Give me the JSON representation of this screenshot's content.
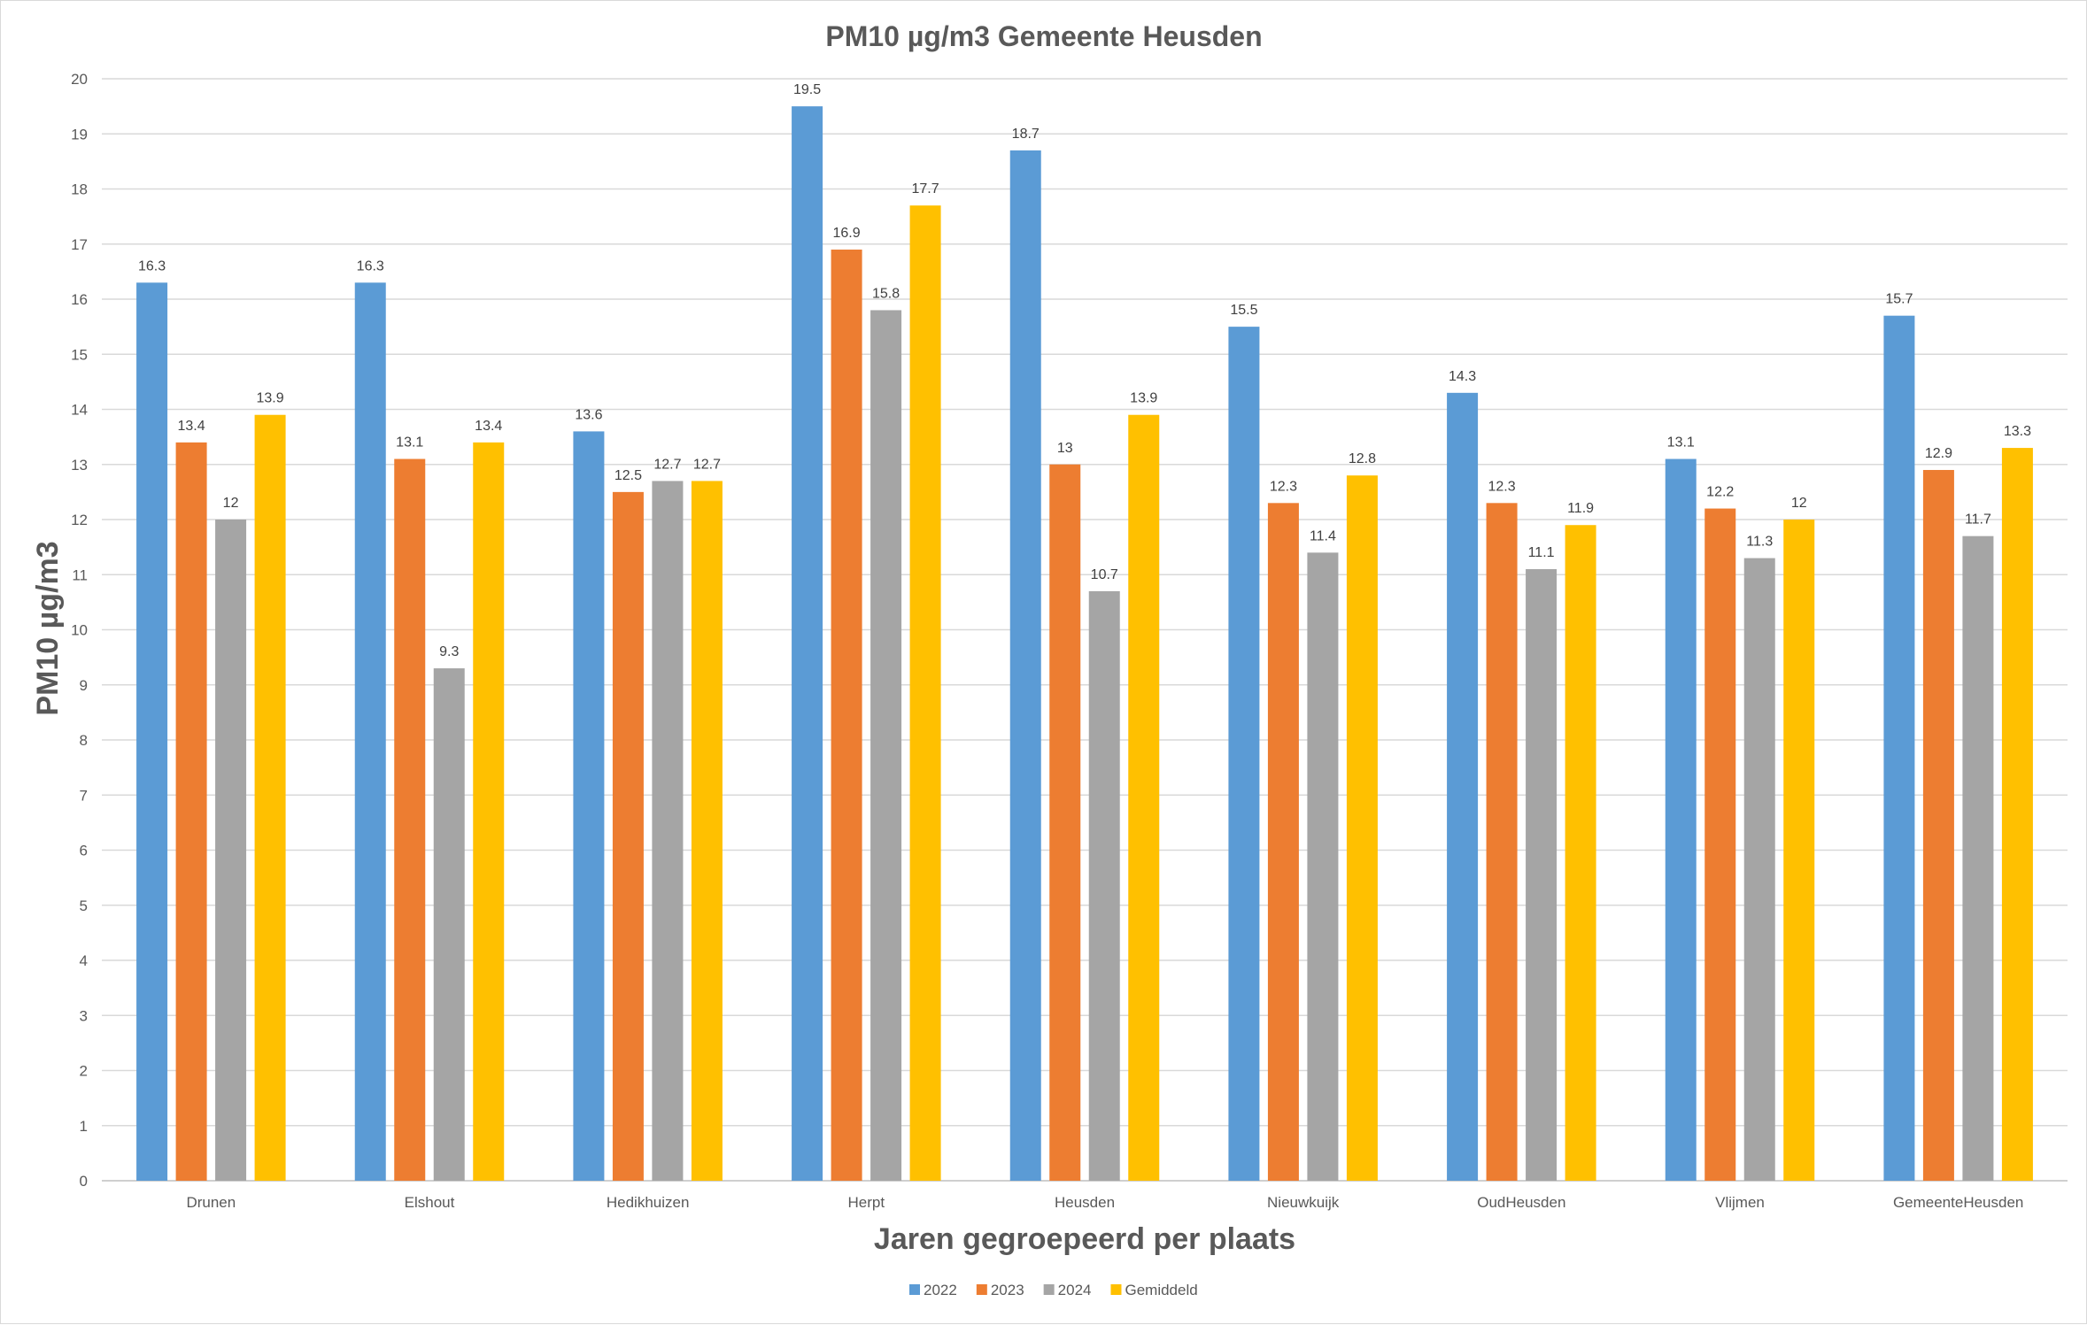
{
  "chart_data": {
    "type": "bar",
    "title": "PM10 µg/m3 Gemeente Heusden",
    "xlabel": "Jaren gegroepeerd per plaats",
    "ylabel": "PM10 µg/m3",
    "ylim": [
      0,
      20
    ],
    "yticks": [
      0,
      1,
      2,
      3,
      4,
      5,
      6,
      7,
      8,
      9,
      10,
      11,
      12,
      13,
      14,
      15,
      16,
      17,
      18,
      19,
      20
    ],
    "grid": true,
    "legend_position": "bottom",
    "categories": [
      "Drunen",
      "Elshout",
      "Hedikhuizen",
      "Herpt",
      "Heusden",
      "Nieuwkuijk",
      "OudHeusden",
      "Vlijmen",
      "GemeenteHeusden"
    ],
    "series": [
      {
        "name": "2022",
        "color": "#5b9bd5",
        "values": [
          16.3,
          16.3,
          13.6,
          19.5,
          18.7,
          15.5,
          14.3,
          13.1,
          15.7
        ]
      },
      {
        "name": "2023",
        "color": "#ed7d31",
        "values": [
          13.4,
          13.1,
          12.5,
          16.9,
          13,
          12.3,
          12.3,
          12.2,
          12.9
        ]
      },
      {
        "name": "2024",
        "color": "#a5a5a5",
        "values": [
          12,
          9.3,
          12.7,
          15.8,
          10.7,
          11.4,
          11.1,
          11.3,
          11.7
        ]
      },
      {
        "name": "Gemiddeld",
        "color": "#ffc000",
        "values": [
          13.9,
          13.4,
          12.7,
          17.7,
          13.9,
          12.8,
          11.9,
          12,
          13.3
        ]
      }
    ]
  }
}
